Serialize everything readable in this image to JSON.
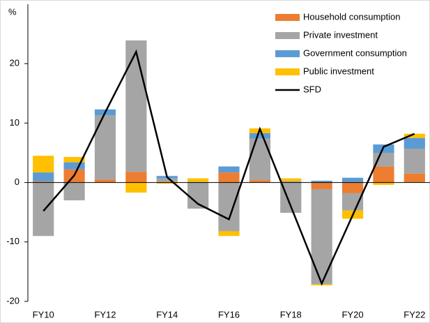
{
  "chart_data": {
    "type": "stacked-bar-line",
    "ylabel": "%",
    "categories": [
      "FY10",
      null,
      "FY12",
      null,
      "FY14",
      null,
      "FY16",
      null,
      "FY18",
      null,
      "FY20",
      null,
      "FY22"
    ],
    "series": [
      {
        "name": "Household consumption",
        "color": "#ed7d31",
        "kind": "bar",
        "values": [
          0.2,
          2.2,
          0.5,
          1.8,
          0.1,
          0,
          1.7,
          0.4,
          0.1,
          -1.1,
          -1.8,
          2.7,
          1.5
        ]
      },
      {
        "name": "Private investment",
        "color": "#a5a5a5",
        "kind": "bar",
        "values": [
          -9.0,
          -3.0,
          10.8,
          22.1,
          0.6,
          -4.4,
          -8.2,
          7.0,
          -5.1,
          -16.0,
          -2.9,
          2.3,
          4.2
        ]
      },
      {
        "name": "Government consumption",
        "color": "#5b9bd5",
        "kind": "bar",
        "values": [
          1.5,
          1.2,
          1.0,
          0,
          0.4,
          0.1,
          1.0,
          0.9,
          0.1,
          0.3,
          0.8,
          1.4,
          1.8
        ]
      },
      {
        "name": "Public investment",
        "color": "#ffc000",
        "kind": "bar",
        "values": [
          2.8,
          0.9,
          0,
          -1.7,
          -0.2,
          0.6,
          -0.8,
          0.8,
          0.5,
          -0.2,
          -1.4,
          -0.4,
          0.7
        ]
      },
      {
        "name": "SFD",
        "color": "#000000",
        "kind": "line",
        "values": [
          -4.8,
          1.2,
          11.8,
          22.0,
          0.9,
          -3.6,
          -6.2,
          9.0,
          -4.0,
          -17.0,
          -5.5,
          6.0,
          8.2
        ]
      }
    ],
    "ylim": [
      -20,
      30
    ],
    "yticks": [
      -20,
      -10,
      0,
      10,
      20
    ]
  }
}
